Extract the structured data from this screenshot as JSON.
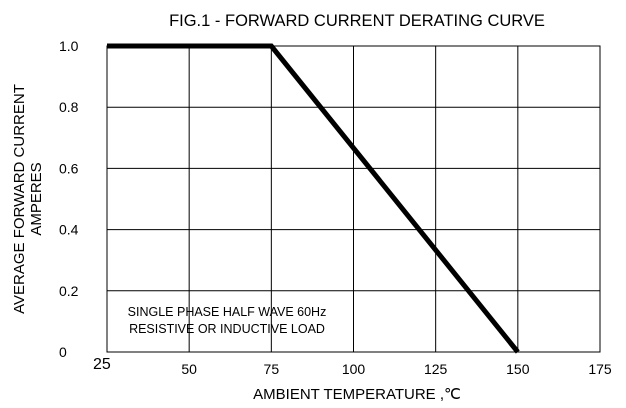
{
  "chart_data": {
    "type": "line",
    "title": "FIG.1 - FORWARD CURRENT DERATING CURVE",
    "xlabel": "AMBIENT TEMPERATURE ,℃",
    "ylabel_lines": [
      "AVERAGE FORWARD CURRENT",
      "AMPERES"
    ],
    "xlim": [
      25,
      175
    ],
    "ylim": [
      0,
      1.0
    ],
    "x_ticks": [
      25,
      50,
      75,
      100,
      125,
      150,
      175
    ],
    "x_tick_labels": [
      "25",
      "50",
      "75",
      "100",
      "125",
      "150",
      "175"
    ],
    "y_ticks": [
      0,
      0.2,
      0.4,
      0.6,
      0.8,
      1.0
    ],
    "y_tick_labels": [
      "0",
      "0.2",
      "0.4",
      "0.6",
      "0.8",
      "1.0"
    ],
    "grid": true,
    "series": [
      {
        "x": [
          25,
          75,
          150
        ],
        "y": [
          1.0,
          1.0,
          0
        ]
      }
    ],
    "annotation_lines": [
      "SINGLE PHASE HALF WAVE 60Hz",
      "RESISTIVE OR INDUCTIVE LOAD"
    ],
    "line_color": "#000000"
  }
}
